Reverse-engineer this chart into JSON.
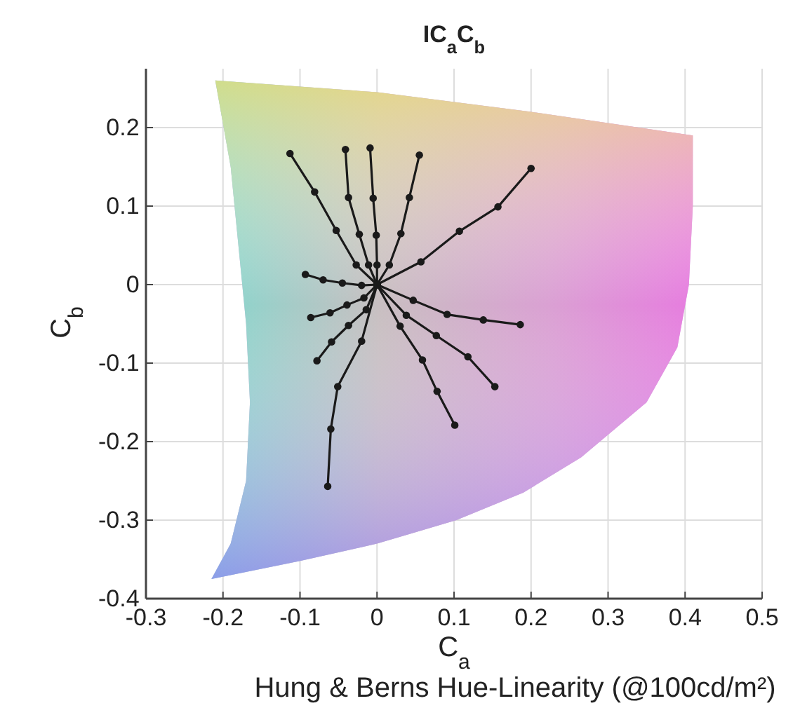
{
  "chart_data": {
    "type": "line",
    "title": "IC$_{a}$C$_{b}$",
    "xlabel": "C$_{a}$",
    "ylabel": "C$_{b}$",
    "annotations": [
      "Hung & Berns Hue-Linearity (@100cd/m²)"
    ],
    "xlim": [
      -0.3,
      0.5
    ],
    "ylim": [
      -0.4,
      0.275
    ],
    "xticks": [
      -0.3,
      -0.2,
      -0.1,
      0,
      0.1,
      0.2,
      0.3,
      0.4,
      0.5
    ],
    "yticks": [
      -0.4,
      -0.3,
      -0.2,
      -0.1,
      0,
      0.1,
      0.2
    ],
    "grid": true,
    "marker": "circle",
    "line_style": "solid",
    "series": [
      {
        "type": "area",
        "marker": "none",
        "color": "#c9a3dc",
        "x": [
          -0.21,
          0,
          0.2,
          0.41,
          0.41,
          0.405,
          0.39,
          0.35,
          0.265,
          0.19,
          0.103,
          0,
          -0.1,
          -0.215,
          -0.19,
          -0.17,
          -0.165,
          -0.17,
          -0.18,
          -0.19,
          -0.21
        ],
        "values": [
          0.26,
          0.245,
          0.22,
          0.19,
          0.1,
          0,
          -0.08,
          -0.15,
          -0.22,
          -0.265,
          -0.3,
          -0.33,
          -0.352,
          -0.375,
          -0.33,
          -0.25,
          -0.15,
          -0.05,
          0.05,
          0.15,
          0.26
        ]
      },
      {
        "color": "#1a1a1a",
        "x": [
          0,
          -0.027,
          -0.053,
          -0.081,
          -0.113
        ],
        "values": [
          0,
          0.025,
          0.069,
          0.118,
          0.167
        ]
      },
      {
        "color": "#1a1a1a",
        "x": [
          0,
          -0.011,
          -0.023,
          -0.037,
          -0.041
        ],
        "values": [
          0,
          0.025,
          0.064,
          0.111,
          0.172
        ]
      },
      {
        "color": "#1a1a1a",
        "x": [
          0,
          0,
          -0.001,
          -0.005,
          -0.009
        ],
        "values": [
          0,
          0.025,
          0.063,
          0.11,
          0.174
        ]
      },
      {
        "color": "#1a1a1a",
        "x": [
          0,
          0.016,
          0.031,
          0.042,
          0.055
        ],
        "values": [
          0,
          0.025,
          0.065,
          0.111,
          0.165
        ]
      },
      {
        "color": "#1a1a1a",
        "x": [
          0,
          0.057,
          0.107,
          0.157,
          0.2
        ],
        "values": [
          0,
          0.029,
          0.068,
          0.099,
          0.148
        ]
      },
      {
        "color": "#1a1a1a",
        "x": [
          0,
          -0.02,
          -0.045,
          -0.07,
          -0.093
        ],
        "values": [
          0,
          -0.001,
          0.002,
          0.006,
          0.013
        ]
      },
      {
        "color": "#1a1a1a",
        "x": [
          0,
          -0.017,
          -0.039,
          -0.061,
          -0.086
        ],
        "values": [
          0,
          -0.017,
          -0.026,
          -0.036,
          -0.042
        ]
      },
      {
        "color": "#1a1a1a",
        "x": [
          0,
          -0.014,
          -0.037,
          -0.059,
          -0.078
        ],
        "values": [
          0,
          -0.032,
          -0.052,
          -0.073,
          -0.097
        ]
      },
      {
        "color": "#1a1a1a",
        "x": [
          0,
          -0.02,
          -0.051,
          -0.06,
          -0.064
        ],
        "values": [
          0,
          -0.072,
          -0.13,
          -0.184,
          -0.257
        ]
      },
      {
        "color": "#1a1a1a",
        "x": [
          0,
          0.03,
          0.059,
          0.078,
          0.101
        ],
        "values": [
          0,
          -0.053,
          -0.096,
          -0.136,
          -0.179
        ]
      },
      {
        "color": "#1a1a1a",
        "x": [
          0,
          0.038,
          0.077,
          0.118,
          0.153
        ],
        "values": [
          0,
          -0.039,
          -0.065,
          -0.092,
          -0.13
        ]
      },
      {
        "color": "#1a1a1a",
        "x": [
          0,
          0.047,
          0.091,
          0.138,
          0.186
        ],
        "values": [
          0,
          -0.02,
          -0.038,
          -0.045,
          -0.051
        ]
      }
    ]
  }
}
